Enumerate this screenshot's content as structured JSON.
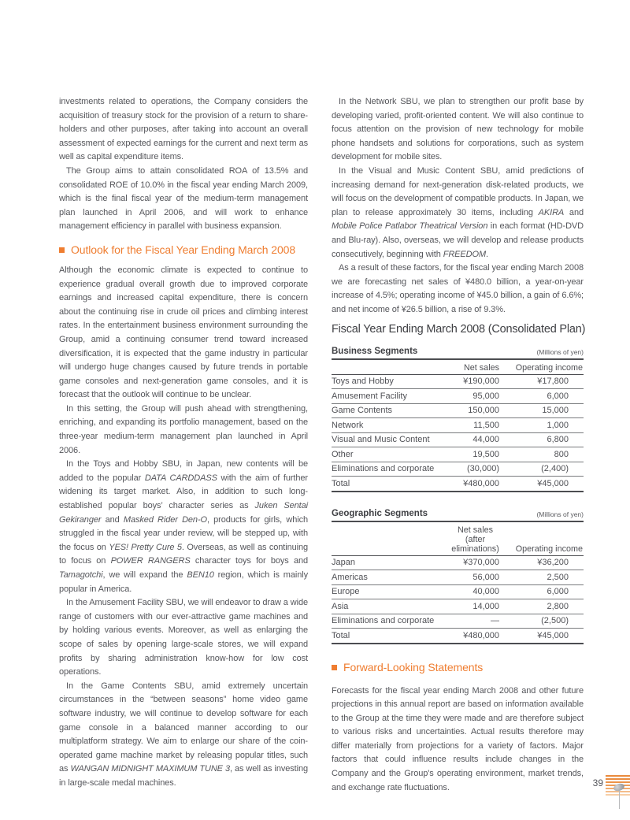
{
  "colors": {
    "accent_orange": "#ef7d30",
    "body_text": "#55565b",
    "rule_dark": "#4c4d51",
    "rule_row": "#797b7e"
  },
  "left_column": {
    "p1": "investments related to operations, the Company considers the acquisition of treasury stock for the provision of a return to share-holders and other purposes, after taking into account an overall assessment of expected earnings for the current and next term as well as capital expenditure items.",
    "p2": "The Group aims to attain consolidated ROA of 13.5% and consolidated ROE of 10.0% in the fiscal year ending March 2009, which is the final fiscal year of the medium-term management plan launched in April 2006, and will work to enhance management efficiency in parallel with business expansion.",
    "outlook_heading": "Outlook for the Fiscal Year Ending March 2008",
    "p3": "Although the economic climate is expected to continue to experience gradual overall growth due to improved corporate earnings and increased capital expenditure, there is concern about the continuing rise in crude oil prices and climbing interest rates. In the entertainment business environment surrounding the Group, amid a continuing consumer trend toward increased diversification, it is expected that the game industry in particular will undergo huge changes caused by future trends in portable game consoles and next-generation game consoles, and it is forecast that the outlook will continue to be unclear.",
    "p4": "In this setting, the Group will push ahead with strengthening, enriching, and expanding its portfolio management, based on the three-year medium-term management plan launched in April 2006.",
    "p5": [
      {
        "t": "In the Toys and Hobby SBU, in Japan, new contents will be added to the popular "
      },
      {
        "t": "DATA CARDDASS",
        "i": true
      },
      {
        "t": " with the aim of further widening its target market. Also, in addition to such long-established popular boys’ character series as "
      },
      {
        "t": "Juken Sentai Gekiranger",
        "i": true
      },
      {
        "t": " and "
      },
      {
        "t": "Masked Rider Den-O",
        "i": true
      },
      {
        "t": ", products for girls, which struggled in the fiscal year under review, will be stepped up, with the focus on "
      },
      {
        "t": "YES! Pretty Cure 5",
        "i": true
      },
      {
        "t": ". Overseas, as well as continuing to focus on "
      },
      {
        "t": "POWER RANGERS",
        "i": true
      },
      {
        "t": " character toys for boys and "
      },
      {
        "t": "Tamagotchi",
        "i": true
      },
      {
        "t": ", we will expand the "
      },
      {
        "t": "BEN10",
        "i": true
      },
      {
        "t": " region, which is mainly popular in America."
      }
    ],
    "p6": "In the Amusement Facility SBU, we will endeavor to draw a wide range of customers with our ever-attractive game machines and by holding various events. Moreover, as well as enlarging the scope of sales by opening large-scale stores, we will expand profits by sharing administration know-how for low cost operations.",
    "p7": [
      {
        "t": "In the Game Contents SBU, amid extremely uncertain circumstances in the “between seasons” home video game software industry, we will continue to develop software for each game console in a balanced manner according to our multiplatform strategy. We aim to enlarge our share of the coin-operated game machine market by releasing popular titles, such as "
      },
      {
        "t": "WANGAN MIDNIGHT MAXIMUM TUNE 3",
        "i": true
      },
      {
        "t": ", as well as investing in large-scale medal machines."
      }
    ]
  },
  "right_column": {
    "p8": "In the Network SBU, we plan to strengthen our profit base by developing varied, profit-oriented content. We will also continue to focus attention on the provision of new technology for mobile phone handsets and solutions for corporations, such as system development for mobile sites.",
    "p9": [
      {
        "t": "In the Visual and Music Content SBU, amid predictions of increasing demand for next-generation disk-related products, we will focus on the development of compatible products. In Japan, we plan to release approximately 30 items, including "
      },
      {
        "t": "AKIRA",
        "i": true
      },
      {
        "t": " and "
      },
      {
        "t": "Mobile Police Patlabor Theatrical Version",
        "i": true
      },
      {
        "t": " in each format (HD-DVD and Blu-ray). Also, overseas, we will develop and release products consecutively, beginning with "
      },
      {
        "t": "FREEDOM",
        "i": true
      },
      {
        "t": "."
      }
    ],
    "p10": "As a result of these factors, for the fiscal year ending March 2008 we are forecasting net sales of ¥480.0 billion, a year-on-year increase of 4.5%; operating income of ¥45.0 billion, a gain of 6.6%; and net income of ¥26.5 billion, a rise of 9.3%.",
    "plan_title": "Fiscal Year Ending March 2008 (Consolidated Plan)",
    "business_table": {
      "title": "Business Segments",
      "unit_note": "(Millions of yen)",
      "col2_header": "Net sales",
      "col3_header": "Operating income",
      "rows": [
        [
          "Toys and Hobby",
          "¥190,000",
          "¥17,800"
        ],
        [
          "Amusement Facility",
          "95,000",
          "6,000"
        ],
        [
          "Game Contents",
          "150,000",
          "15,000"
        ],
        [
          "Network",
          "11,500",
          "1,000"
        ],
        [
          "Visual and Music Content",
          "44,000",
          "6,800"
        ],
        [
          "Other",
          "19,500",
          "800"
        ],
        [
          "Eliminations and corporate",
          "(30,000)",
          "(2,400)"
        ],
        [
          "Total",
          "¥480,000",
          "¥45,000"
        ]
      ]
    },
    "geographic_table": {
      "title": "Geographic Segments",
      "unit_note": "(Millions of yen)",
      "col2_header_line1": "Net sales",
      "col2_header_line2": "(after eliminations)",
      "col3_header": "Operating income",
      "rows": [
        [
          "Japan",
          "¥370,000",
          "¥36,200"
        ],
        [
          "Americas",
          "56,000",
          "2,500"
        ],
        [
          "Europe",
          "40,000",
          "6,000"
        ],
        [
          "Asia",
          "14,000",
          "2,800"
        ],
        [
          "Eliminations and corporate",
          "—",
          "(2,500)"
        ],
        [
          "Total",
          "¥480,000",
          "¥45,000"
        ]
      ]
    },
    "forward_heading": "Forward-Looking Statements",
    "p11": "Forecasts for the fiscal year ending March 2008 and other future projections in this annual report are based on information available to the Group at the time they were made and are therefore subject to various risks and uncertainties. Actual results therefore may differ materially from projections for a variety of factors. Major factors that could influence results include changes in the Company and the Group's operating environment, market trends, and exchange rate fluctuations."
  },
  "footer": {
    "page_number": "39"
  }
}
